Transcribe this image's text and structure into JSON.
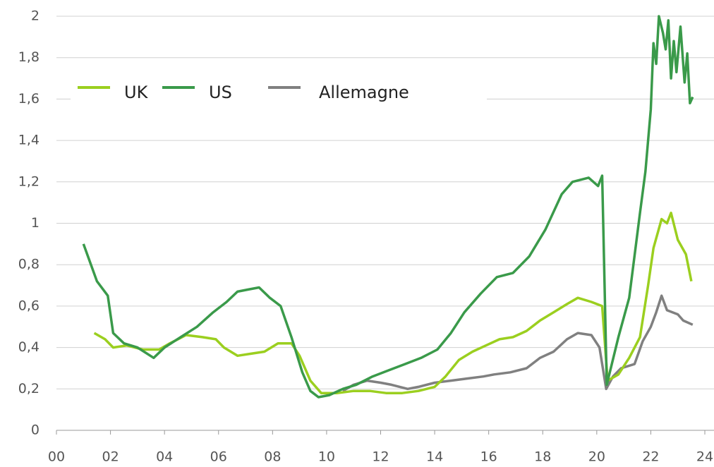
{
  "chart_data": {
    "type": "line",
    "xlim": [
      2000,
      2024
    ],
    "xticks": [
      {
        "value": 2000,
        "label": "00"
      },
      {
        "value": 2002,
        "label": "02"
      },
      {
        "value": 2004,
        "label": "04"
      },
      {
        "value": 2006,
        "label": "06"
      },
      {
        "value": 2008,
        "label": "08"
      },
      {
        "value": 2010,
        "label": "10"
      },
      {
        "value": 2012,
        "label": "12"
      },
      {
        "value": 2014,
        "label": "14"
      },
      {
        "value": 2016,
        "label": "16"
      },
      {
        "value": 2018,
        "label": "18"
      },
      {
        "value": 2020,
        "label": "20"
      },
      {
        "value": 2022,
        "label": "22"
      },
      {
        "value": 2024,
        "label": "24"
      }
    ],
    "ylim": [
      0,
      2
    ],
    "yticks": [
      0,
      {
        "value": 0.2,
        "label": "0,2"
      },
      {
        "value": 0.4,
        "label": "0,4"
      },
      {
        "value": 0.6,
        "label": "0,6"
      },
      {
        "value": 0.8,
        "label": "0,8"
      },
      1,
      {
        "value": 1.2,
        "label": "1,2"
      },
      {
        "value": 1.4,
        "label": "1,4"
      },
      {
        "value": 1.6,
        "label": "1,6"
      },
      {
        "value": 1.8,
        "label": "1,8"
      },
      2
    ],
    "grid": true,
    "legend": "top-left",
    "series": [
      {
        "name": "UK",
        "color": "#9bcf1f",
        "x": [
          2001.4,
          2001.8,
          2002.1,
          2002.6,
          2003.2,
          2003.8,
          2004.2,
          2004.8,
          2005.4,
          2005.9,
          2006.2,
          2006.7,
          2007.2,
          2007.7,
          2008.2,
          2008.7,
          2009.0,
          2009.4,
          2009.8,
          2010.4,
          2011.0,
          2011.6,
          2012.2,
          2012.8,
          2013.4,
          2014.0,
          2014.4,
          2014.9,
          2015.4,
          2015.9,
          2016.4,
          2016.9,
          2017.4,
          2017.9,
          2018.4,
          2018.9,
          2019.3,
          2019.8,
          2020.2,
          2020.4,
          2020.8,
          2021.2,
          2021.6,
          2021.9,
          2022.1,
          2022.4,
          2022.6,
          2022.75,
          2023.0,
          2023.3,
          2023.5
        ],
        "values": [
          0.47,
          0.44,
          0.4,
          0.41,
          0.39,
          0.39,
          0.42,
          0.46,
          0.45,
          0.44,
          0.4,
          0.36,
          0.37,
          0.38,
          0.42,
          0.42,
          0.36,
          0.24,
          0.18,
          0.18,
          0.19,
          0.19,
          0.18,
          0.18,
          0.19,
          0.21,
          0.26,
          0.34,
          0.38,
          0.41,
          0.44,
          0.45,
          0.48,
          0.53,
          0.57,
          0.61,
          0.64,
          0.62,
          0.6,
          0.24,
          0.27,
          0.35,
          0.45,
          0.7,
          0.88,
          1.02,
          1.0,
          1.05,
          0.92,
          0.85,
          0.72
        ]
      },
      {
        "name": "US",
        "color": "#3a9a4a",
        "x": [
          2001.0,
          2001.5,
          2001.9,
          2002.1,
          2002.5,
          2003.0,
          2003.6,
          2004.0,
          2004.6,
          2005.2,
          2005.8,
          2006.3,
          2006.7,
          2007.1,
          2007.5,
          2007.9,
          2008.3,
          2008.7,
          2009.1,
          2009.4,
          2009.7,
          2010.1,
          2010.6,
          2011.1,
          2011.7,
          2012.3,
          2012.9,
          2013.5,
          2014.1,
          2014.6,
          2015.1,
          2015.7,
          2016.3,
          2016.9,
          2017.5,
          2018.1,
          2018.7,
          2019.1,
          2019.7,
          2020.05,
          2020.2,
          2020.37,
          2020.8,
          2021.2,
          2021.6,
          2021.8,
          2022.0,
          2022.1,
          2022.2,
          2022.3,
          2022.45,
          2022.55,
          2022.65,
          2022.75,
          2022.85,
          2022.95,
          2023.1,
          2023.25,
          2023.35,
          2023.45,
          2023.55
        ],
        "values": [
          0.9,
          0.72,
          0.65,
          0.47,
          0.42,
          0.4,
          0.35,
          0.4,
          0.45,
          0.5,
          0.57,
          0.62,
          0.67,
          0.68,
          0.69,
          0.64,
          0.6,
          0.45,
          0.28,
          0.19,
          0.16,
          0.17,
          0.2,
          0.22,
          0.26,
          0.29,
          0.32,
          0.35,
          0.39,
          0.47,
          0.57,
          0.66,
          0.74,
          0.76,
          0.84,
          0.97,
          1.14,
          1.2,
          1.22,
          1.18,
          1.23,
          0.22,
          0.45,
          0.64,
          1.05,
          1.25,
          1.55,
          1.87,
          1.77,
          2.0,
          1.92,
          1.84,
          1.98,
          1.7,
          1.88,
          1.73,
          1.95,
          1.68,
          1.82,
          1.58,
          1.61
        ]
      },
      {
        "name": "Allemagne",
        "color": "#808080",
        "x": [
          2010.6,
          2011.0,
          2011.5,
          2012.0,
          2012.4,
          2013.0,
          2013.4,
          2014.0,
          2014.6,
          2015.2,
          2015.8,
          2016.2,
          2016.8,
          2017.4,
          2017.9,
          2018.4,
          2018.9,
          2019.3,
          2019.8,
          2020.1,
          2020.35,
          2020.6,
          2020.9,
          2021.4,
          2021.7,
          2022.0,
          2022.2,
          2022.4,
          2022.6,
          2023.0,
          2023.2,
          2023.55
        ],
        "values": [
          0.19,
          0.22,
          0.24,
          0.23,
          0.22,
          0.2,
          0.21,
          0.23,
          0.24,
          0.25,
          0.26,
          0.27,
          0.28,
          0.3,
          0.35,
          0.38,
          0.44,
          0.47,
          0.46,
          0.4,
          0.2,
          0.26,
          0.3,
          0.32,
          0.43,
          0.5,
          0.57,
          0.65,
          0.58,
          0.56,
          0.53,
          0.51
        ]
      }
    ]
  }
}
